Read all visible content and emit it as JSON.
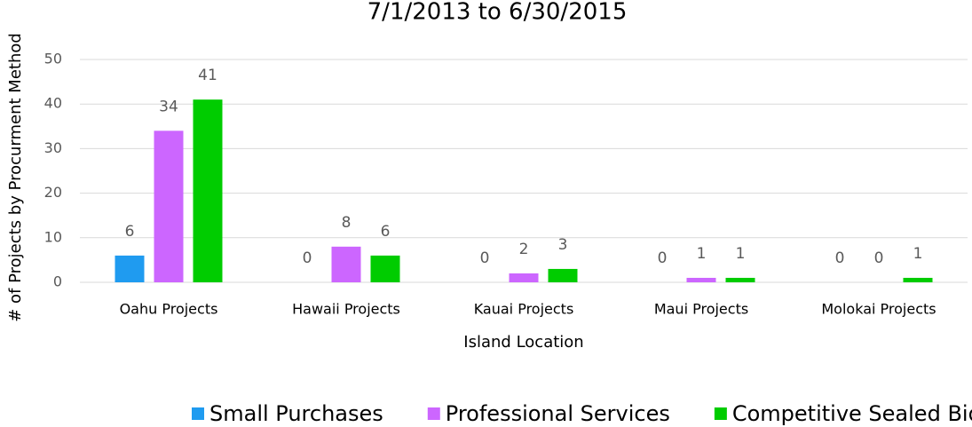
{
  "chart_data": {
    "type": "bar",
    "title": "7/1/2013 to 6/30/2015",
    "x_label": "Island Location",
    "y_label": "# of Projects by Procurment Method",
    "categories": [
      "Oahu Projects",
      "Hawaii Projects",
      "Kauai Projects",
      "Maui Projects",
      "Molokai Projects"
    ],
    "series": [
      {
        "name": "Small Purchases",
        "color": "#1f9bf0",
        "values": [
          6,
          0,
          0,
          0,
          0
        ]
      },
      {
        "name": "Professional Services",
        "color": "#cc66ff",
        "values": [
          34,
          8,
          2,
          1,
          0
        ]
      },
      {
        "name": "Competitive Sealed Bids",
        "color": "#00cc00",
        "values": [
          41,
          6,
          3,
          1,
          1
        ]
      }
    ],
    "ylim": [
      0,
      50
    ],
    "yticks": [
      0,
      10,
      20,
      30,
      40,
      50
    ],
    "grid": true,
    "legend": "bottom"
  }
}
